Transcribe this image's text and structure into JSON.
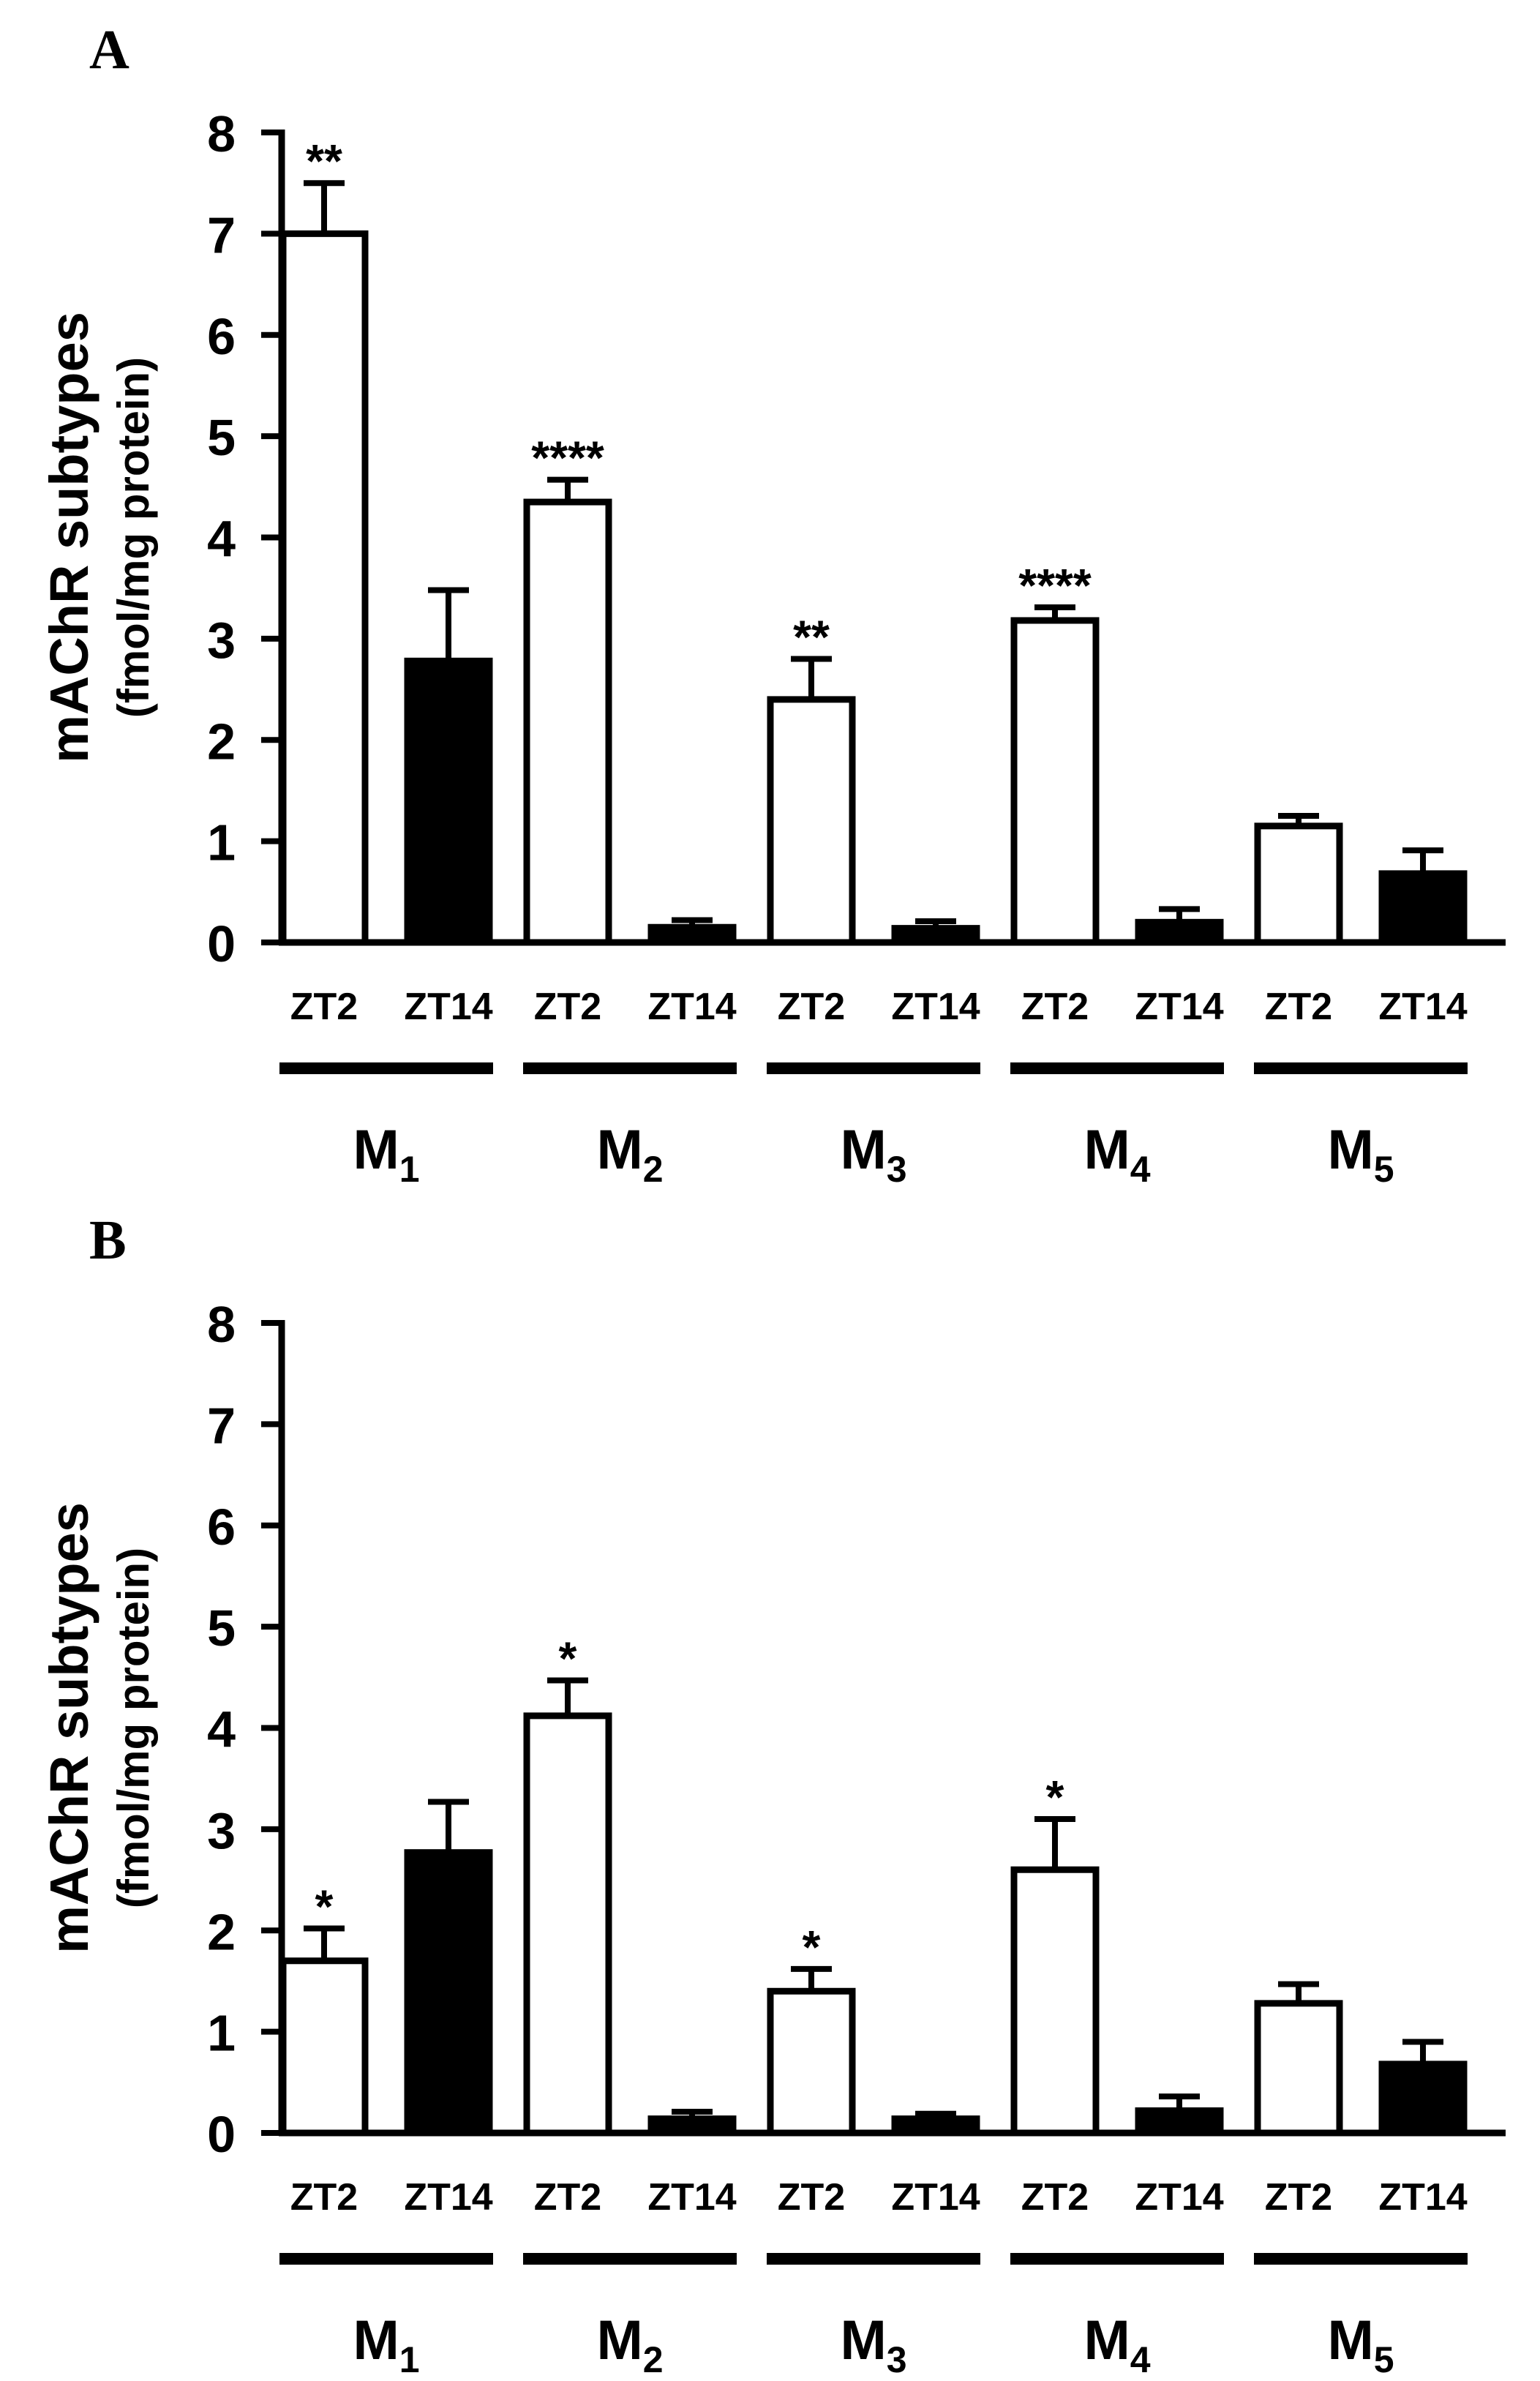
{
  "chart_data": [
    {
      "panel_label": "A",
      "type": "bar",
      "ylabel_line1": "mAChR subtypes",
      "ylabel_line2": "(fmol/mg protein)",
      "ylim": [
        0,
        8
      ],
      "yticks": [
        "0",
        "1",
        "2",
        "3",
        "4",
        "5",
        "6",
        "7",
        "8"
      ],
      "series_names": [
        "ZT2",
        "ZT14"
      ],
      "series_colors": [
        "#ffffff",
        "#000000"
      ],
      "groups": [
        {
          "label": "M",
          "sub": "1",
          "bars": [
            {
              "name": "ZT2",
              "value": 7.0,
              "error": 0.5,
              "sig": "**"
            },
            {
              "name": "ZT14",
              "value": 2.78,
              "error": 0.7,
              "sig": ""
            }
          ]
        },
        {
          "label": "M",
          "sub": "2",
          "bars": [
            {
              "name": "ZT2",
              "value": 4.35,
              "error": 0.22,
              "sig": "****"
            },
            {
              "name": "ZT14",
              "value": 0.15,
              "error": 0.07,
              "sig": ""
            }
          ]
        },
        {
          "label": "M",
          "sub": "3",
          "bars": [
            {
              "name": "ZT2",
              "value": 2.4,
              "error": 0.4,
              "sig": "**"
            },
            {
              "name": "ZT14",
              "value": 0.14,
              "error": 0.07,
              "sig": ""
            }
          ]
        },
        {
          "label": "M",
          "sub": "4",
          "bars": [
            {
              "name": "ZT2",
              "value": 3.18,
              "error": 0.13,
              "sig": "****"
            },
            {
              "name": "ZT14",
              "value": 0.2,
              "error": 0.13,
              "sig": ""
            }
          ]
        },
        {
          "label": "M",
          "sub": "5",
          "bars": [
            {
              "name": "ZT2",
              "value": 1.15,
              "error": 0.1,
              "sig": ""
            },
            {
              "name": "ZT14",
              "value": 0.68,
              "error": 0.23,
              "sig": ""
            }
          ]
        }
      ]
    },
    {
      "panel_label": "B",
      "type": "bar",
      "ylabel_line1": "mAChR subtypes",
      "ylabel_line2": "(fmol/mg protein)",
      "ylim": [
        0,
        8
      ],
      "yticks": [
        "0",
        "1",
        "2",
        "3",
        "4",
        "5",
        "6",
        "7",
        "8"
      ],
      "series_names": [
        "ZT2",
        "ZT14"
      ],
      "series_colors": [
        "#ffffff",
        "#000000"
      ],
      "groups": [
        {
          "label": "M",
          "sub": "1",
          "bars": [
            {
              "name": "ZT2",
              "value": 1.7,
              "error": 0.32,
              "sig": "*"
            },
            {
              "name": "ZT14",
              "value": 2.77,
              "error": 0.5,
              "sig": ""
            }
          ]
        },
        {
          "label": "M",
          "sub": "2",
          "bars": [
            {
              "name": "ZT2",
              "value": 4.12,
              "error": 0.35,
              "sig": "*"
            },
            {
              "name": "ZT14",
              "value": 0.14,
              "error": 0.07,
              "sig": ""
            }
          ]
        },
        {
          "label": "M",
          "sub": "3",
          "bars": [
            {
              "name": "ZT2",
              "value": 1.4,
              "error": 0.22,
              "sig": "*"
            },
            {
              "name": "ZT14",
              "value": 0.14,
              "error": 0.05,
              "sig": ""
            }
          ]
        },
        {
          "label": "M",
          "sub": "4",
          "bars": [
            {
              "name": "ZT2",
              "value": 2.6,
              "error": 0.5,
              "sig": "*"
            },
            {
              "name": "ZT14",
              "value": 0.22,
              "error": 0.14,
              "sig": ""
            }
          ]
        },
        {
          "label": "M",
          "sub": "5",
          "bars": [
            {
              "name": "ZT2",
              "value": 1.28,
              "error": 0.19,
              "sig": ""
            },
            {
              "name": "ZT14",
              "value": 0.68,
              "error": 0.22,
              "sig": ""
            }
          ]
        }
      ]
    }
  ]
}
